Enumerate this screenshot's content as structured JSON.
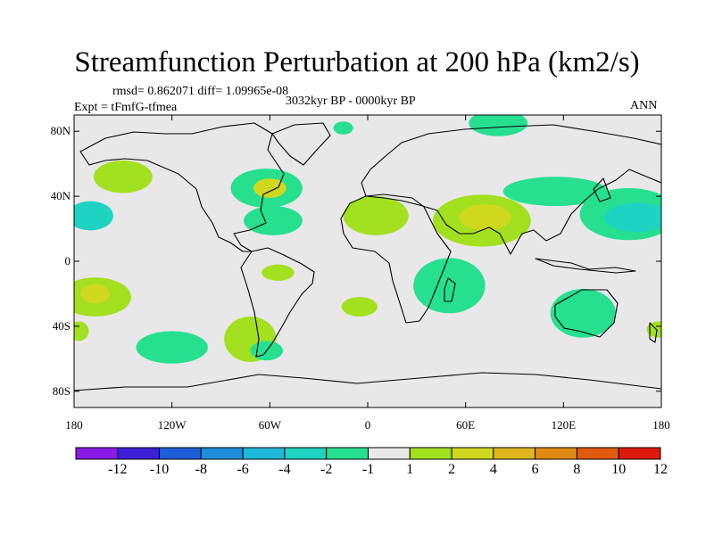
{
  "title": "Streamfunction Perturbation at 200 hPa (km2/s)",
  "stats": "rmsd= 0.862071 diff= 1.09965e-08",
  "experiment": "Expt = tFmfG-tfmea",
  "period": "3032kyr BP - 0000kyr BP",
  "season": "ANN",
  "axes": {
    "lat_ticks": [
      "80N",
      "40N",
      "0",
      "40S",
      "80S"
    ],
    "lon_ticks": [
      "180",
      "120W",
      "60W",
      "0",
      "60E",
      "120E",
      "180"
    ]
  },
  "colorbar": {
    "labels": [
      "-12",
      "-10",
      "-8",
      "-6",
      "-4",
      "-2",
      "-1",
      "1",
      "2",
      "4",
      "6",
      "8",
      "10",
      "12"
    ],
    "colors": [
      "#8a1be6",
      "#3d1fd6",
      "#1e5ed8",
      "#1f8ed8",
      "#1fb8d8",
      "#1fd3c2",
      "#26e08f",
      "#e8e8e8",
      "#a3e01f",
      "#cfd81f",
      "#e0b51c",
      "#e08a16",
      "#e05a10",
      "#e01a0a"
    ]
  },
  "anomalies": [
    {
      "lon": -150,
      "lat": 52,
      "rx": 18,
      "ry": 10,
      "level": "2"
    },
    {
      "lon": -170,
      "lat": 28,
      "rx": 14,
      "ry": 9,
      "level": "-2"
    },
    {
      "lon": -167,
      "lat": -22,
      "rx": 22,
      "ry": 12,
      "level": "2"
    },
    {
      "lon": -167,
      "lat": -20,
      "rx": 9,
      "ry": 6,
      "level": "4"
    },
    {
      "lon": -177,
      "lat": -43,
      "rx": 6,
      "ry": 6,
      "level": "2"
    },
    {
      "lon": -120,
      "lat": -53,
      "rx": 22,
      "ry": 10,
      "level": "-1"
    },
    {
      "lon": -72,
      "lat": -48,
      "rx": 16,
      "ry": 14,
      "level": "2"
    },
    {
      "lon": -62,
      "lat": -55,
      "rx": 10,
      "ry": 6,
      "level": "-1"
    },
    {
      "lon": -62,
      "lat": 45,
      "rx": 22,
      "ry": 12,
      "level": "-1"
    },
    {
      "lon": -60,
      "lat": 45,
      "rx": 10,
      "ry": 6,
      "level": "4"
    },
    {
      "lon": -58,
      "lat": 25,
      "rx": 18,
      "ry": 9,
      "level": "-1"
    },
    {
      "lon": -55,
      "lat": -7,
      "rx": 10,
      "ry": 5,
      "level": "2"
    },
    {
      "lon": -15,
      "lat": 82,
      "rx": 6,
      "ry": 4,
      "level": "-1"
    },
    {
      "lon": 5,
      "lat": 28,
      "rx": 20,
      "ry": 12,
      "level": "2"
    },
    {
      "lon": -5,
      "lat": -28,
      "rx": 11,
      "ry": 6,
      "level": "2"
    },
    {
      "lon": 50,
      "lat": -15,
      "rx": 22,
      "ry": 17,
      "level": "-1"
    },
    {
      "lon": 80,
      "lat": 85,
      "rx": 18,
      "ry": 8,
      "level": "-1"
    },
    {
      "lon": 70,
      "lat": 25,
      "rx": 30,
      "ry": 16,
      "level": "2"
    },
    {
      "lon": 72,
      "lat": 27,
      "rx": 16,
      "ry": 8,
      "level": "4"
    },
    {
      "lon": 115,
      "lat": 43,
      "rx": 32,
      "ry": 9,
      "level": "-1"
    },
    {
      "lon": 160,
      "lat": 29,
      "rx": 30,
      "ry": 16,
      "level": "-1"
    },
    {
      "lon": 165,
      "lat": 27,
      "rx": 20,
      "ry": 9,
      "level": "-2"
    },
    {
      "lon": 132,
      "lat": -32,
      "rx": 20,
      "ry": 15,
      "level": "-1"
    },
    {
      "lon": 178,
      "lat": -42,
      "rx": 7,
      "ry": 5,
      "level": "2"
    }
  ]
}
